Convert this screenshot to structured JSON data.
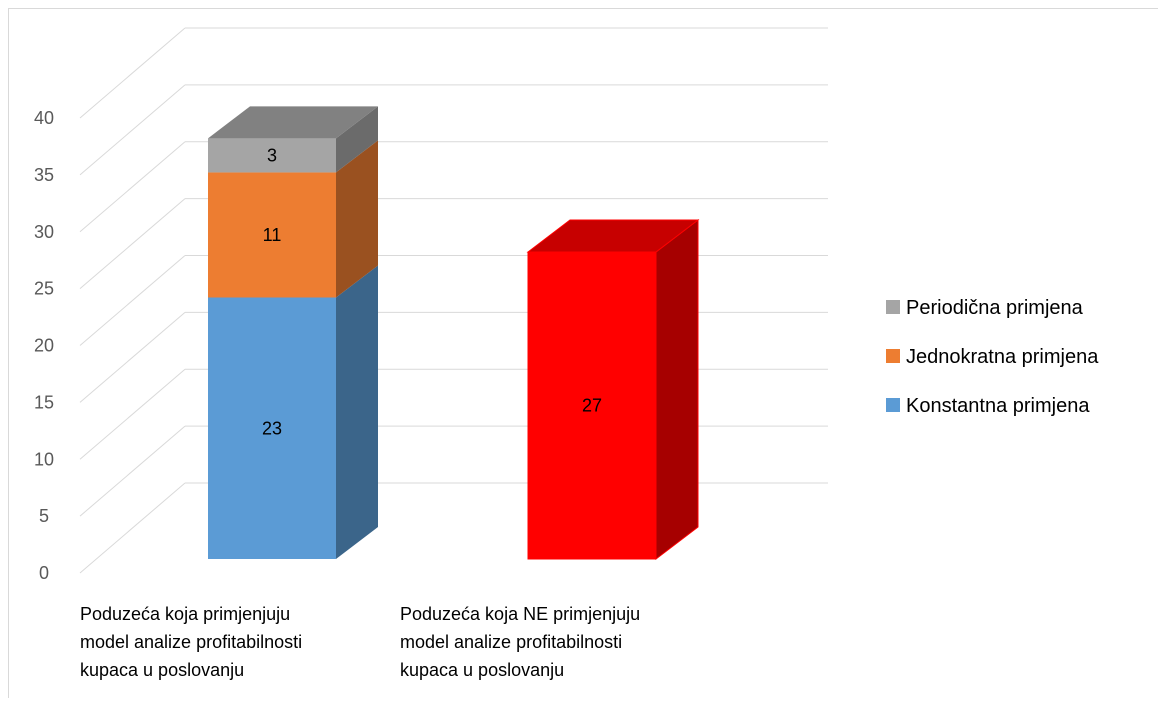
{
  "chart_data": {
    "type": "bar",
    "stacked": true,
    "three_d": true,
    "title": "",
    "xlabel": "",
    "ylabel": "",
    "ylim": [
      0,
      40
    ],
    "y_ticks": [
      0,
      5,
      10,
      15,
      20,
      25,
      30,
      35,
      40
    ],
    "grid": true,
    "legend_position": "right",
    "categories": [
      [
        "Poduzeća koja primjenjuju",
        "model analize profitabilnosti",
        "kupaca u poslovanju"
      ],
      [
        "Poduzeća koja NE primjenjuju",
        "model analize profitabilnosti",
        "kupaca u poslovanju"
      ]
    ],
    "series": [
      {
        "name": "Konstantna primjena",
        "color": "#5b9bd5",
        "values": [
          23,
          null
        ]
      },
      {
        "name": "Jednokratna primjena",
        "color": "#ed7d31",
        "values": [
          11,
          null
        ]
      },
      {
        "name": "Periodična primjena",
        "color": "#a5a5a5",
        "values": [
          3,
          null
        ]
      }
    ],
    "extra_bars": [
      {
        "category_index": 1,
        "value": 27,
        "color": "#ff0000"
      }
    ],
    "legend_order": [
      "Periodična primjena",
      "Jednokratna primjena",
      "Konstantna primjena"
    ]
  }
}
